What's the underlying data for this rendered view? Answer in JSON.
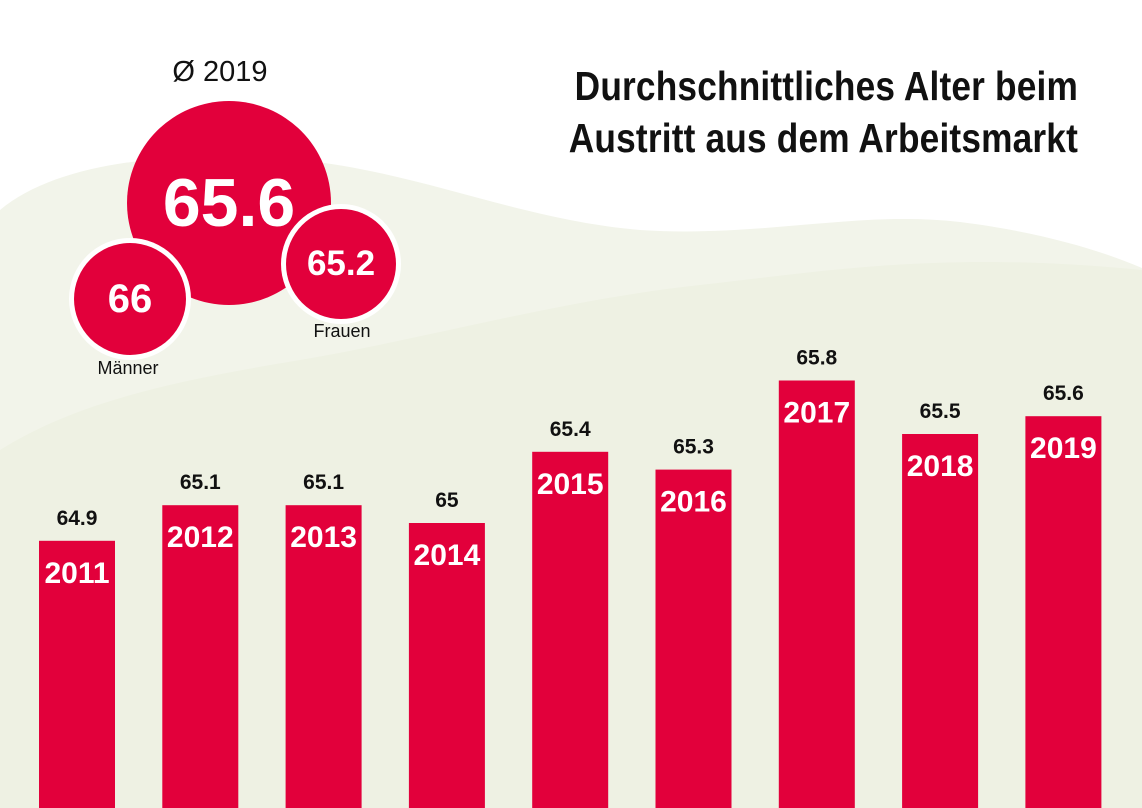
{
  "title": {
    "line1": "Durchschnittliches Alter beim",
    "line2": "Austritt aus dem Arbeitsmarkt"
  },
  "average": {
    "label": "Ø 2019",
    "total": "65.6",
    "men": {
      "value": "66",
      "label": "Männer"
    },
    "women": {
      "value": "65.2",
      "label": "Frauen"
    }
  },
  "colors": {
    "bar": "#e2003b",
    "background_shape": "#f1f3e8",
    "text": "#111111",
    "bar_text": "#ffffff"
  },
  "chart_data": {
    "type": "bar",
    "title": "Durchschnittliches Alter beim Austritt aus dem Arbeitsmarkt",
    "xlabel": "",
    "ylabel": "",
    "categories": [
      "2011",
      "2012",
      "2013",
      "2014",
      "2015",
      "2016",
      "2017",
      "2018",
      "2019"
    ],
    "values": [
      64.9,
      65.1,
      65.1,
      65,
      65.4,
      65.3,
      65.8,
      65.5,
      65.6
    ],
    "value_labels": [
      "64.9",
      "65.1",
      "65.1",
      "65",
      "65.4",
      "65.3",
      "65.8",
      "65.5",
      "65.6"
    ],
    "ylim": [
      63.4,
      66.05
    ],
    "grid": false,
    "legend": "none"
  }
}
